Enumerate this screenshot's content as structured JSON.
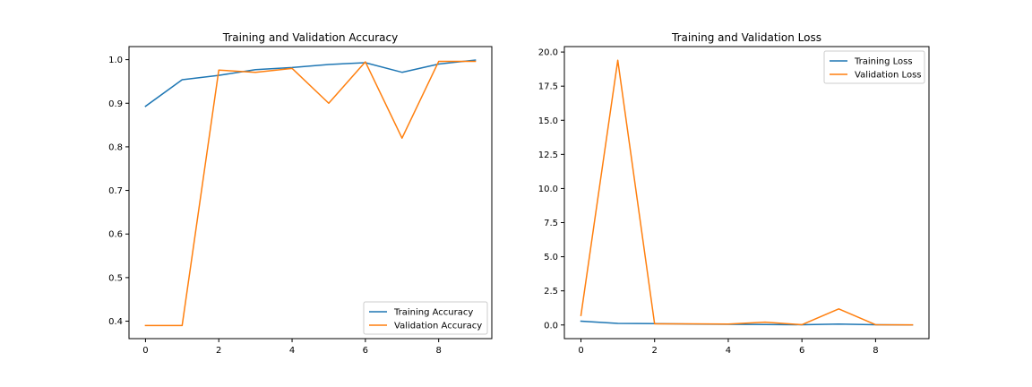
{
  "chart_data": [
    {
      "type": "line",
      "title": "Training and Validation Accuracy",
      "xlabel": "",
      "ylabel": "",
      "x": [
        0,
        1,
        2,
        3,
        4,
        5,
        6,
        7,
        8,
        9
      ],
      "xlim": [
        -0.45,
        9.45
      ],
      "ylim": [
        0.36,
        1.03
      ],
      "xticks": [
        0,
        2,
        4,
        6,
        8
      ],
      "xtick_labels": [
        "0",
        "2",
        "4",
        "6",
        "8"
      ],
      "yticks": [
        0.4,
        0.5,
        0.6,
        0.7,
        0.8,
        0.9,
        1.0
      ],
      "ytick_labels": [
        "0.4",
        "0.5",
        "0.6",
        "0.7",
        "0.8",
        "0.9",
        "1.0"
      ],
      "grid": false,
      "legend_position": "lower-right",
      "series": [
        {
          "name": "Training Accuracy",
          "color": "#1f77b4",
          "values": [
            0.893,
            0.954,
            0.964,
            0.977,
            0.982,
            0.989,
            0.993,
            0.971,
            0.99,
            0.999
          ]
        },
        {
          "name": "Validation Accuracy",
          "color": "#ff7f0e",
          "values": [
            0.39,
            0.39,
            0.976,
            0.971,
            0.98,
            0.9,
            0.995,
            0.82,
            0.996,
            0.996
          ]
        }
      ]
    },
    {
      "type": "line",
      "title": "Training and Validation Loss",
      "xlabel": "",
      "ylabel": "",
      "x": [
        0,
        1,
        2,
        3,
        4,
        5,
        6,
        7,
        8,
        9
      ],
      "xlim": [
        -0.45,
        9.45
      ],
      "ylim": [
        -1.0,
        20.4
      ],
      "xticks": [
        0,
        2,
        4,
        6,
        8
      ],
      "xtick_labels": [
        "0",
        "2",
        "4",
        "6",
        "8"
      ],
      "yticks": [
        0.0,
        2.5,
        5.0,
        7.5,
        10.0,
        12.5,
        15.0,
        17.5,
        20.0
      ],
      "ytick_labels": [
        "0.0",
        "2.5",
        "5.0",
        "7.5",
        "10.0",
        "12.5",
        "15.0",
        "17.5",
        "20.0"
      ],
      "grid": false,
      "legend_position": "upper-right",
      "series": [
        {
          "name": "Training Loss",
          "color": "#1f77b4",
          "values": [
            0.28,
            0.12,
            0.1,
            0.07,
            0.05,
            0.03,
            0.02,
            0.07,
            0.02,
            0.0
          ]
        },
        {
          "name": "Validation Loss",
          "color": "#ff7f0e",
          "values": [
            0.7,
            19.4,
            0.08,
            0.08,
            0.07,
            0.21,
            0.02,
            1.18,
            0.02,
            0.01
          ]
        }
      ]
    }
  ]
}
